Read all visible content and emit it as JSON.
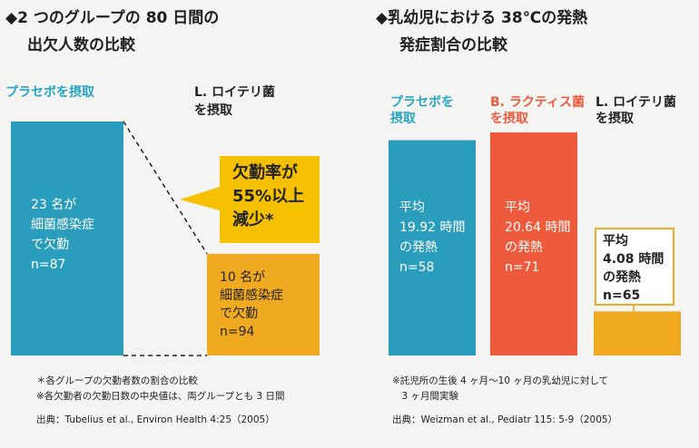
{
  "left": {
    "title_line1": "◆2 つのグループの 80 日間の",
    "title_line2": "出欠人数の比較",
    "placebo_label": "プラセボを摂取",
    "reuteri_label_line1": "L. ロイテリ菌",
    "reuteri_label_line2": "を摂取",
    "placebo_bar_text": [
      "23 名が",
      "細菌感染症",
      "で欠勤",
      "n=87"
    ],
    "reuteri_bar_text": [
      "10 名が",
      "細菌感染症",
      "で欠勤",
      "n=94"
    ],
    "callout": [
      "欠勤率が",
      "55%以上",
      "減少*"
    ],
    "notes": [
      "＊各グループの欠勤者数の割合の比較",
      "※各欠勤者の欠勤日数の中央値は、両グループとも 3 日間"
    ],
    "source": "出典：Tubelius et al., Environ Health 4:25（2005）"
  },
  "right": {
    "title_line1": "◆乳幼児における 38℃の発熱",
    "title_line2": "発症割合の比較",
    "placebo_label_line1": "プラセボを",
    "placebo_label_line2": "摂取",
    "lactis_label_line1": "B. ラクティス菌",
    "lactis_label_line2": "を摂取",
    "reuteri_label_line1": "L. ロイテリ菌",
    "reuteri_label_line2": "を摂取",
    "placebo_bar_text": [
      "平均",
      "19.92 時間",
      "の発熱",
      "n=58"
    ],
    "lactis_bar_text": [
      "平均",
      "20.64 時間",
      "の発熱",
      "n=71"
    ],
    "reuteri_box_text": [
      "平均",
      "4.08 時間",
      "の発熱",
      "n=65"
    ],
    "notes": [
      "※託児所の生後 4 ヶ月〜10 ヶ月の乳幼児に対して",
      "　3 ヶ月間実験"
    ],
    "source": "出典：Weizman et al., Pediatr 115: 5-9（2005）"
  },
  "colors": {
    "teal": "#2a9cbc",
    "orange_red": "#ee5b3c",
    "amber": "#f0aa22",
    "callout_yellow": "#f5c000"
  },
  "chart_data": [
    {
      "type": "bar",
      "categories": [
        "プラセボを摂取",
        "L. ロイテリ菌を摂取"
      ],
      "values": [
        23,
        10
      ],
      "n": [
        87,
        94
      ]
    },
    {
      "type": "bar",
      "categories": [
        "プラセボを摂取",
        "B. ラクティス菌を摂取",
        "L. ロイテリ菌を摂取"
      ],
      "values": [
        19.92,
        20.64,
        4.08
      ],
      "n": [
        58,
        71,
        65
      ]
    }
  ]
}
